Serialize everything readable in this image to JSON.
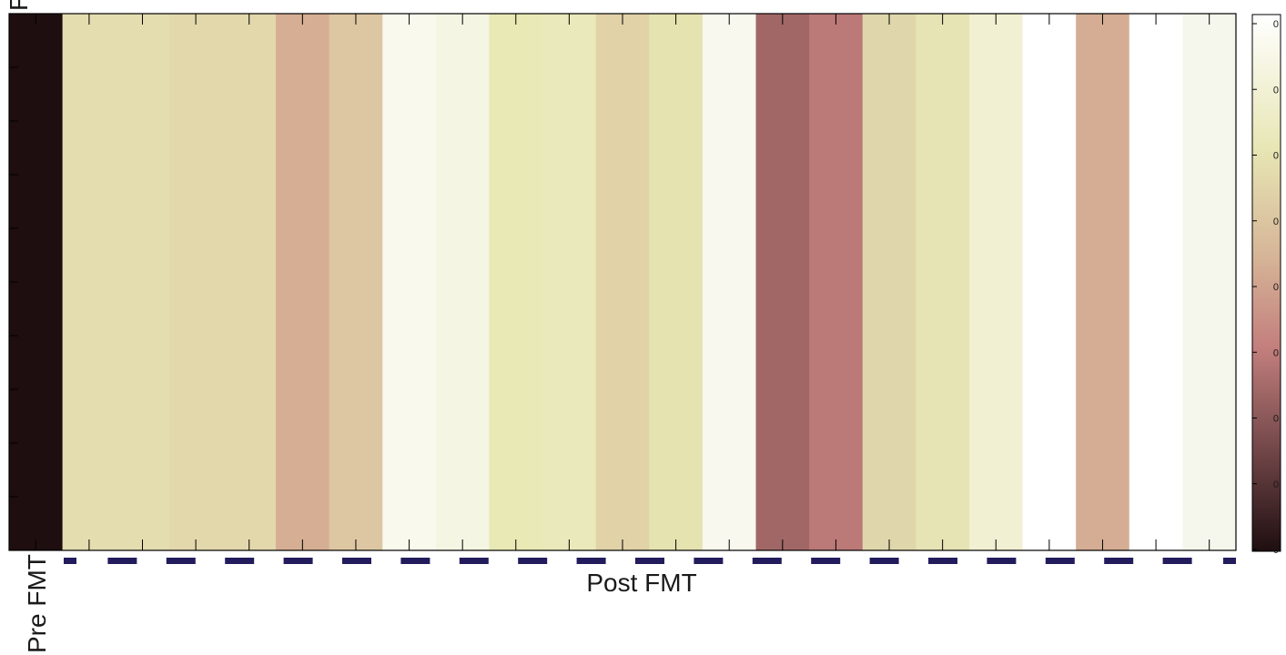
{
  "chart_data": {
    "type": "heatmap",
    "title": "",
    "xlabel": "Post FMT",
    "group_label": "Pre FMT",
    "ylabel_fragment": "F",
    "columns": 23,
    "first_column_group": "Pre FMT",
    "cell_colors": [
      "#1e0e10",
      "#e4ddb0",
      "#e4ddb0",
      "#e2d8ac",
      "#e2d8ac",
      "#d6ae93",
      "#ddc6a2",
      "#f9f9ee",
      "#f4f5e3",
      "#e9e9b6",
      "#eae9bb",
      "#e1d2a8",
      "#e5e3b0",
      "#f8f8ef",
      "#a16766",
      "#bb7977",
      "#dfd7ab",
      "#e6e4b4",
      "#f1f0d2",
      "#ffffff",
      "#d5ad94",
      "#ffffff",
      "#f6f7ec"
    ],
    "colorbar": {
      "tick_labels": [
        "0",
        "0",
        "0",
        "0",
        "0",
        "0",
        "0",
        "0",
        "0"
      ],
      "colormap": "pink"
    },
    "group_bar_color": "#231c5c"
  }
}
